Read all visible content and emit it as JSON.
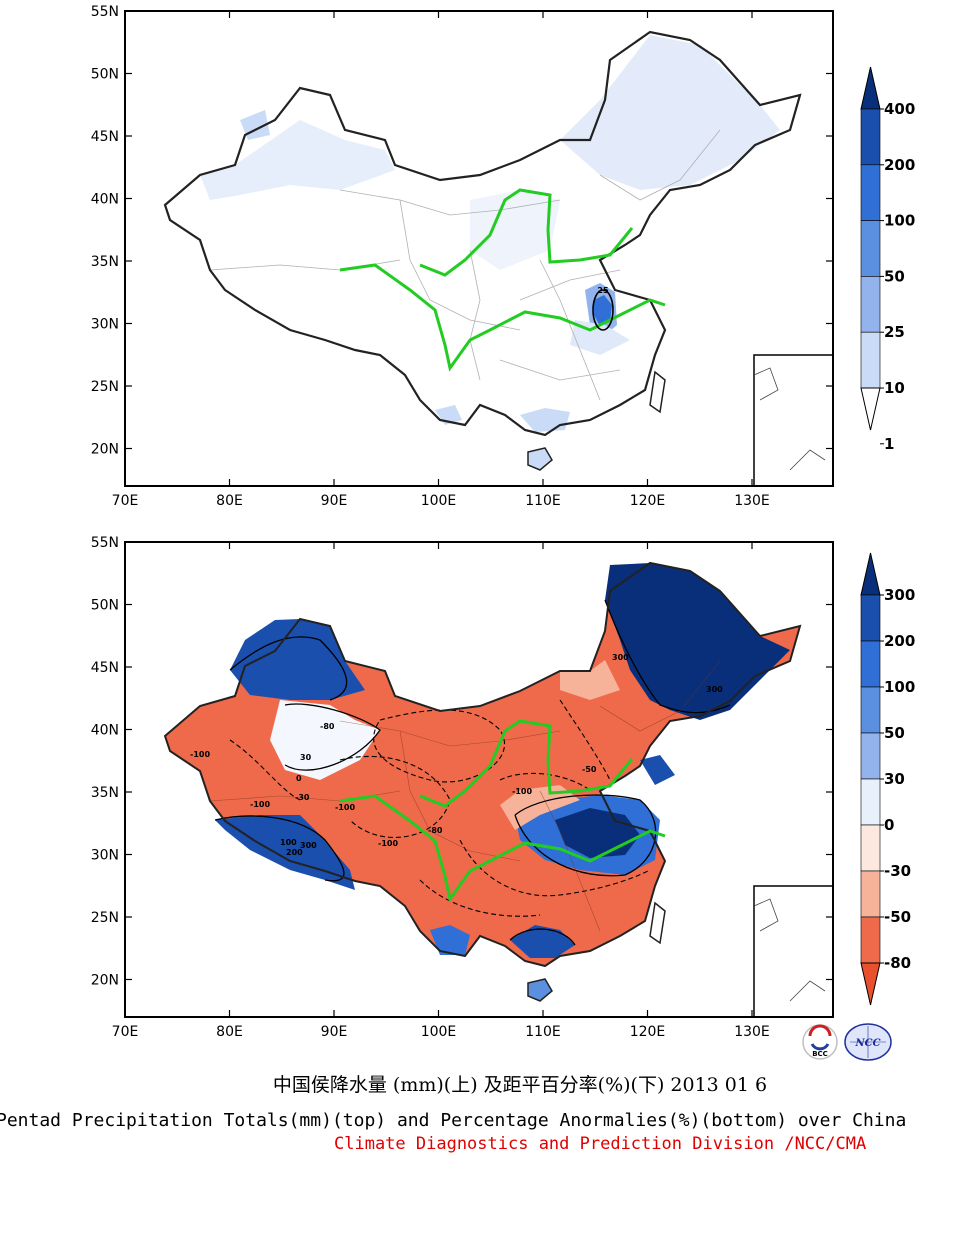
{
  "maps": [
    {
      "id": "top",
      "lat_ticks": [
        "55N",
        "50N",
        "45N",
        "40N",
        "35N",
        "30N",
        "25N",
        "20N"
      ],
      "lon_ticks": [
        "70E",
        "80E",
        "90E",
        "100E",
        "110E",
        "120E",
        "130E"
      ],
      "colorbar_labels": [
        "400",
        "200",
        "100",
        "50",
        "25",
        "10",
        "1"
      ],
      "colorbar_colors": [
        "#0a2f7a",
        "#1a4fae",
        "#2f6fd6",
        "#5b8fe0",
        "#93b3ec",
        "#c9dbf6",
        "#ffffff"
      ],
      "contour_labels": [
        "25"
      ]
    },
    {
      "id": "bottom",
      "lat_ticks": [
        "55N",
        "50N",
        "45N",
        "40N",
        "35N",
        "30N",
        "25N",
        "20N"
      ],
      "lon_ticks": [
        "70E",
        "80E",
        "90E",
        "100E",
        "110E",
        "120E",
        "130E"
      ],
      "colorbar_labels": [
        "300",
        "200",
        "100",
        "50",
        "30",
        "0",
        "-30",
        "-50",
        "-80"
      ],
      "colorbar_colors": [
        "#0a2f7a",
        "#1a4fae",
        "#2f6fd6",
        "#5b8fe0",
        "#93b3ec",
        "#e8f0fc",
        "#fde8e0",
        "#f6b39a",
        "#ee6a4a",
        "#e8502e"
      ],
      "contour_labels": [
        "-100",
        "-100",
        "-100",
        "-100",
        "-80",
        "-80",
        "-50",
        "-30",
        "0",
        "30",
        "100",
        "200",
        "300",
        "300",
        "300",
        "-100"
      ]
    }
  ],
  "footer": {
    "title_cn": "中国侯降水量 (mm)(上) 及距平百分率(%)(下) 2013 01 6",
    "title_en": "Pentad Precipitation Totals(mm)(top) and Percentage Anormalies(%)(bottom) over China",
    "credit": "Climate Diagnostics and Prediction Division /NCC/CMA"
  },
  "logos": [
    "BCC",
    "NCC"
  ],
  "colors": {
    "river": "#22cc22",
    "frame": "#000000",
    "credit": "#e00000",
    "dry": "#ee6a4a",
    "wet": "#0a2f7a"
  }
}
